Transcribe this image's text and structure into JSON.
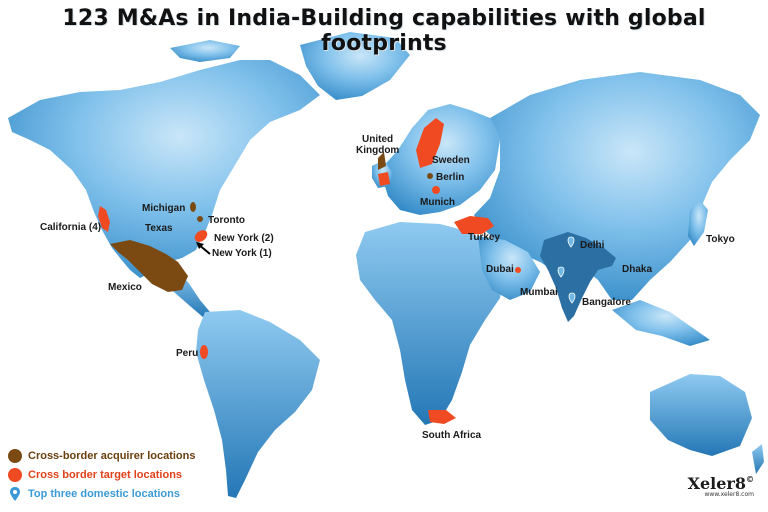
{
  "title": "123 M&As in India-Building capabilities with global footprints",
  "colors": {
    "acquirer": "#7a4a12",
    "target": "#f04a22",
    "domestic": "#3b9ad6",
    "india": "#2c6fa3",
    "land_light": "#8ec9ee",
    "land_dark": "#2a87c5"
  },
  "locations": {
    "california": "California (4)",
    "texas": "Texas",
    "michigan": "Michigan",
    "toronto": "Toronto",
    "new_york_2": "New York (2)",
    "new_york_1": "New York (1)",
    "mexico": "Mexico",
    "peru": "Peru",
    "united_kingdom_1": "United",
    "united_kingdom_2": "Kingdom",
    "sweden": "Sweden",
    "berlin": "Berlin",
    "munich": "Munich",
    "turkey": "Turkey",
    "dubai": "Dubai",
    "mumbai": "Mumbai",
    "delhi": "Delhi",
    "bangalore": "Bangalore",
    "dhaka": "Dhaka",
    "tokyo": "Tokyo",
    "south_africa": "South Africa"
  },
  "legend": [
    {
      "label": "Cross-border acquirer locations",
      "icon": "brown-dot-icon"
    },
    {
      "label": "Cross border target locations",
      "icon": "red-dot-icon"
    },
    {
      "label": "Top three domestic locations",
      "icon": "location-pin-icon"
    }
  ],
  "logo": {
    "name": "Xeler8",
    "symbol": "©",
    "url": "www.xeler8.com"
  }
}
